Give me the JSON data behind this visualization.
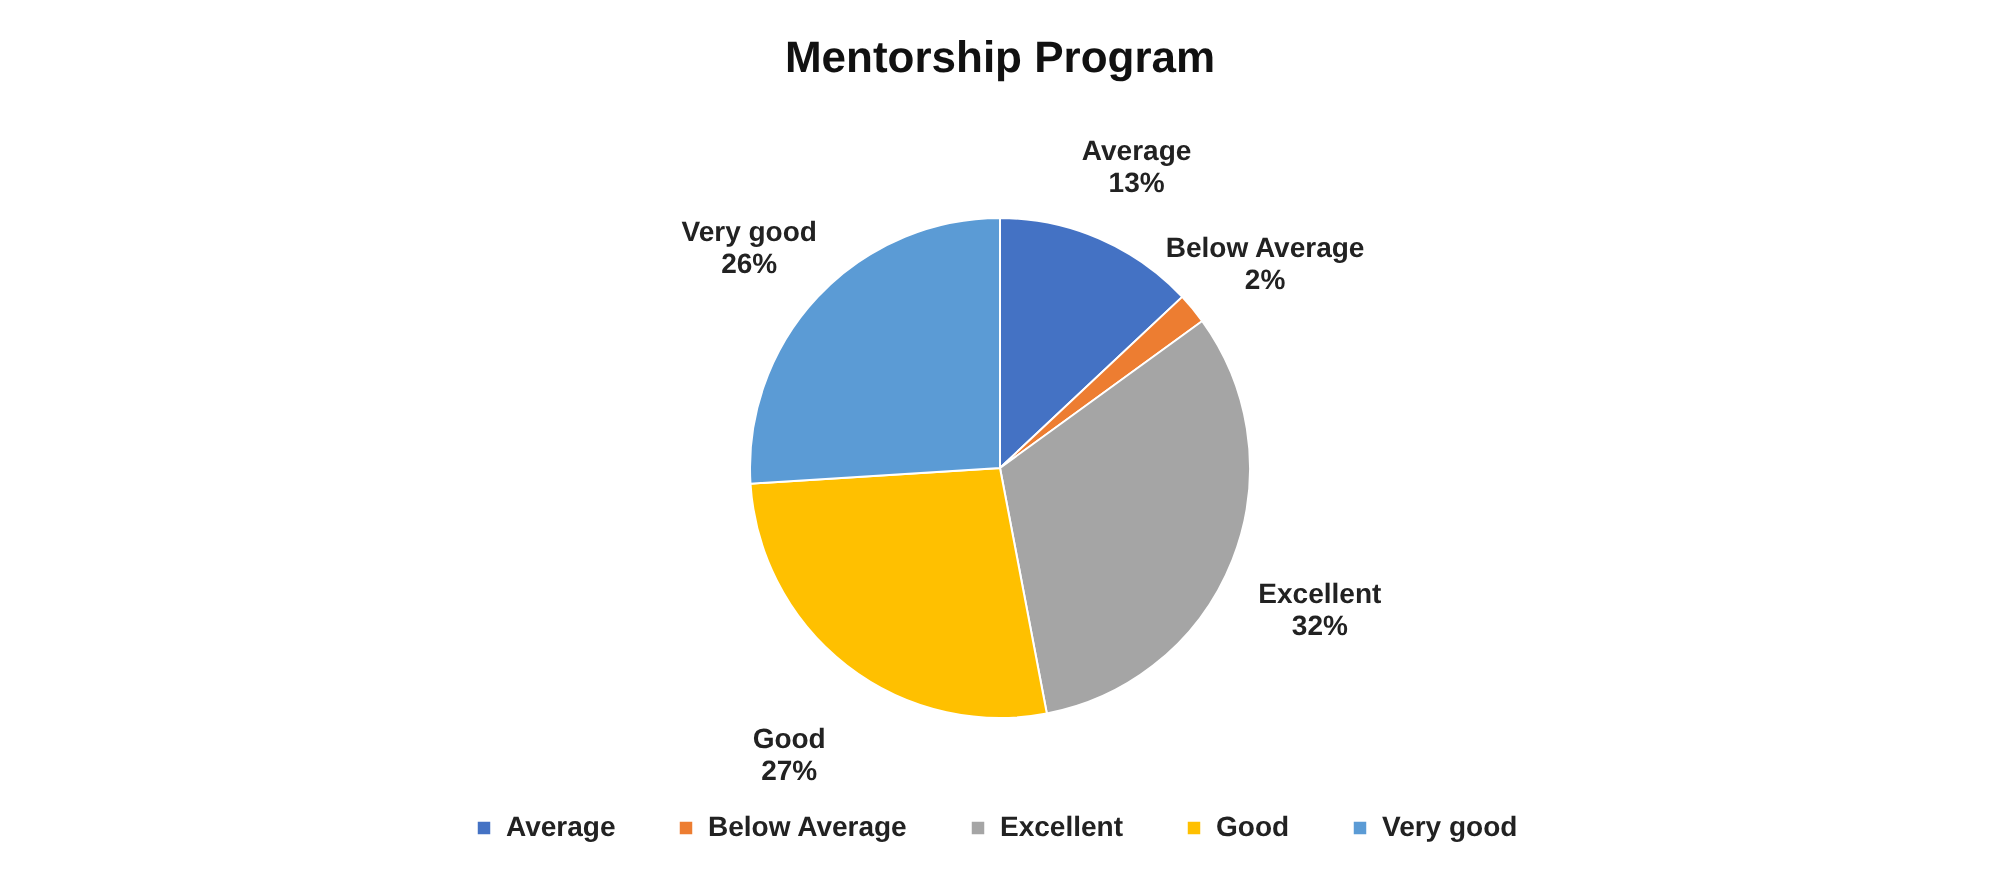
{
  "chart_data": {
    "type": "pie",
    "title": "Mentorship Program",
    "categories": [
      "Average",
      "Below Average",
      "Excellent",
      "Good",
      "Very good"
    ],
    "values": [
      13,
      2,
      32,
      27,
      26
    ],
    "colors": [
      "#4472c4",
      "#ed7d31",
      "#a5a5a5",
      "#ffc000",
      "#5b9bd5"
    ],
    "value_labels": [
      "13%",
      "2%",
      "32%",
      "27%",
      "26%"
    ],
    "legend": "bottom"
  }
}
